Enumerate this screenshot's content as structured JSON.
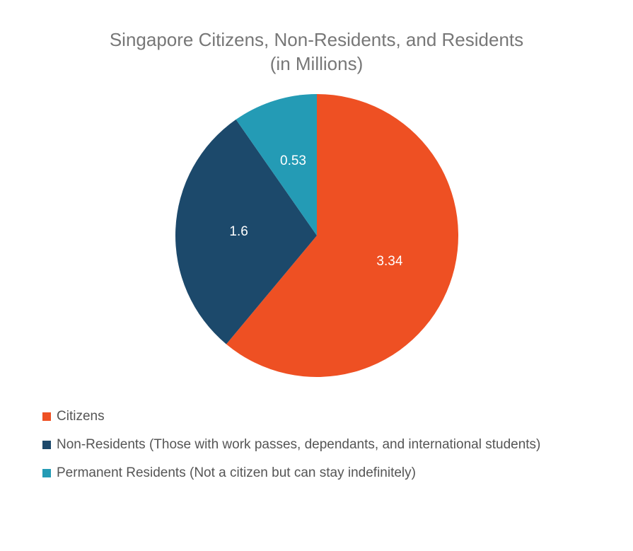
{
  "chart": {
    "type": "pie",
    "title_line1": "Singapore Citizens, Non-Residents, and Residents",
    "title_line2": "(in Millions)",
    "title_fontsize": 26,
    "title_color": "#777777",
    "background_color": "#ffffff",
    "pie_radius": 200,
    "label_fontsize": 19,
    "label_color": "#ffffff",
    "legend_fontsize": 19,
    "legend_text_color": "#555555",
    "slices": [
      {
        "name": "Citizens",
        "value": 3.34,
        "display": "3.34",
        "color": "#ee5023",
        "legend": "Citizens"
      },
      {
        "name": "Non-Residents",
        "value": 1.6,
        "display": "1.6",
        "color": "#1c496b",
        "legend": "Non-Residents (Those with work passes, dependants, and international students)"
      },
      {
        "name": "Permanent Residents",
        "value": 0.53,
        "display": "0.53",
        "color": "#249bb5",
        "legend": "Permanent Residents (Not a citizen but can stay indefinitely)"
      }
    ]
  }
}
